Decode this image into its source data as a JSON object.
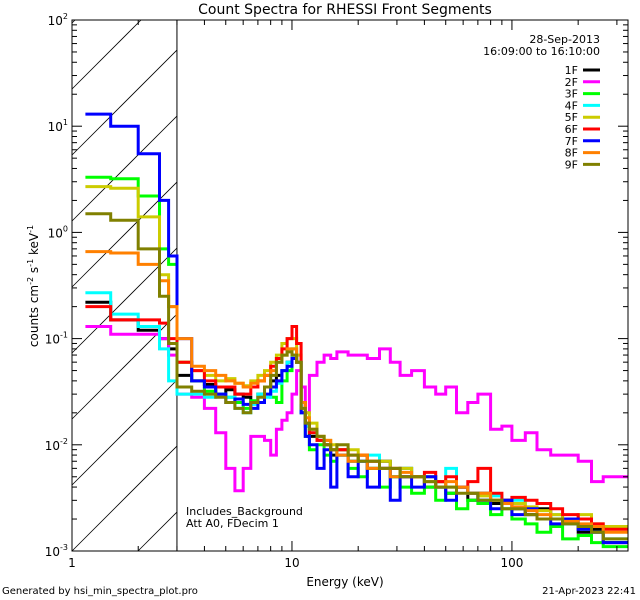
{
  "chart_data": {
    "type": "line",
    "title": "Count Spectra for RHESSI Front Segments",
    "xlabel": "Energy (keV)",
    "ylabel": {
      "base": "counts cm",
      "exp1": "-2",
      "mid": " s",
      "exp2": "-1",
      "mid2": " keV",
      "exp3": "-1"
    },
    "xscale": "log",
    "yscale": "log",
    "xlim": [
      1,
      337
    ],
    "ylim": [
      0.001,
      100
    ],
    "x_ticks": [
      {
        "v": 1,
        "label": "1"
      },
      {
        "v": 10,
        "label": "10"
      },
      {
        "v": 100,
        "label": "100"
      }
    ],
    "y_ticks": [
      {
        "v": 0.001,
        "base": "10",
        "exp": "-3"
      },
      {
        "v": 0.01,
        "base": "10",
        "exp": "-2"
      },
      {
        "v": 0.1,
        "base": "10",
        "exp": "-1"
      },
      {
        "v": 1,
        "base": "10",
        "exp": "0"
      },
      {
        "v": 10,
        "base": "10",
        "exp": "1"
      },
      {
        "v": 100,
        "base": "10",
        "exp": "2"
      }
    ],
    "excluded_region_keV": [
      1,
      3
    ],
    "legend_placement": "top-right",
    "legend_header": [
      "28-Sep-2013",
      "16:09:00 to 16:10:00"
    ],
    "annotations": [
      "Includes_Background",
      "Att A0, FDecim 1"
    ],
    "energy_edges": [
      1.15,
      1.5,
      2,
      2.5,
      2.75,
      3,
      3.5,
      4,
      4.5,
      5,
      5.5,
      6,
      6.5,
      7,
      7.5,
      8,
      8.5,
      9,
      9.5,
      10,
      10.5,
      11,
      11.5,
      12,
      13,
      14,
      15,
      16,
      18,
      20,
      22,
      25,
      28,
      31,
      35,
      40,
      45,
      50,
      56,
      63,
      70,
      80,
      90,
      100,
      115,
      130,
      150,
      170,
      200,
      230,
      260,
      337
    ],
    "series": [
      {
        "name": "1F",
        "color": "#000000",
        "values": [
          0.22,
          0.15,
          0.12,
          0.1,
          0.08,
          0.045,
          0.04,
          0.037,
          0.03,
          0.033,
          0.03,
          0.028,
          0.025,
          0.03,
          0.035,
          0.04,
          0.045,
          0.05,
          0.06,
          0.07,
          0.06,
          0.02,
          0.015,
          0.012,
          0.011,
          0.01,
          0.008,
          0.009,
          0.007,
          0.008,
          0.006,
          0.007,
          0.005,
          0.006,
          0.005,
          0.004,
          0.0045,
          0.0035,
          0.004,
          0.003,
          0.0035,
          0.0028,
          0.003,
          0.0025,
          0.0022,
          0.0025,
          0.002,
          0.0018,
          0.0015,
          0.0016,
          0.0012
        ]
      },
      {
        "name": "2F",
        "color": "#ff00ff",
        "values": [
          0.13,
          0.11,
          0.11,
          0.1,
          0.07,
          0.03,
          0.028,
          0.022,
          0.013,
          0.006,
          0.0037,
          0.006,
          0.012,
          0.012,
          0.011,
          0.008,
          0.014,
          0.017,
          0.02,
          0.03,
          0.05,
          0.035,
          0.02,
          0.045,
          0.06,
          0.07,
          0.065,
          0.075,
          0.07,
          0.07,
          0.065,
          0.08,
          0.06,
          0.045,
          0.05,
          0.035,
          0.03,
          0.035,
          0.02,
          0.025,
          0.03,
          0.014,
          0.015,
          0.011,
          0.013,
          0.009,
          0.008,
          0.008,
          0.007,
          0.0045,
          0.005
        ]
      },
      {
        "name": "3F",
        "color": "#00ff00",
        "values": [
          3.3,
          3.2,
          2.2,
          0.7,
          0.5,
          0.06,
          0.04,
          0.032,
          0.03,
          0.028,
          0.025,
          0.022,
          0.026,
          0.03,
          0.035,
          0.028,
          0.025,
          0.04,
          0.05,
          0.08,
          0.06,
          0.02,
          0.012,
          0.009,
          0.01,
          0.008,
          0.007,
          0.008,
          0.006,
          0.005,
          0.006,
          0.004,
          0.005,
          0.004,
          0.0035,
          0.004,
          0.003,
          0.0035,
          0.0025,
          0.003,
          0.0028,
          0.0022,
          0.0025,
          0.002,
          0.0018,
          0.0015,
          0.0017,
          0.0013,
          0.0014,
          0.0012,
          0.0011
        ]
      },
      {
        "name": "4F",
        "color": "#00ffff",
        "values": [
          0.27,
          0.17,
          0.13,
          0.08,
          0.04,
          0.03,
          0.03,
          0.028,
          0.03,
          0.028,
          0.022,
          0.02,
          0.024,
          0.03,
          0.028,
          0.032,
          0.038,
          0.05,
          0.06,
          0.07,
          0.06,
          0.02,
          0.015,
          0.013,
          0.011,
          0.01,
          0.009,
          0.008,
          0.007,
          0.007,
          0.008,
          0.006,
          0.005,
          0.006,
          0.005,
          0.005,
          0.004,
          0.006,
          0.004,
          0.0035,
          0.003,
          0.0033,
          0.0028,
          0.003,
          0.0025,
          0.002,
          0.0022,
          0.0018,
          0.0017,
          0.0015,
          0.0013
        ]
      },
      {
        "name": "5F",
        "color": "#cccc00",
        "values": [
          2.7,
          2.6,
          1.4,
          0.4,
          0.2,
          0.06,
          0.05,
          0.045,
          0.04,
          0.042,
          0.038,
          0.036,
          0.04,
          0.045,
          0.05,
          0.06,
          0.07,
          0.09,
          0.1,
          0.1,
          0.07,
          0.025,
          0.02,
          0.016,
          0.012,
          0.011,
          0.01,
          0.009,
          0.009,
          0.008,
          0.007,
          0.007,
          0.006,
          0.006,
          0.005,
          0.005,
          0.0045,
          0.004,
          0.004,
          0.0035,
          0.0033,
          0.003,
          0.003,
          0.0028,
          0.0026,
          0.0024,
          0.0022,
          0.002,
          0.0022,
          0.0018,
          0.0017
        ]
      },
      {
        "name": "6F",
        "color": "#ff0000",
        "values": [
          0.2,
          0.15,
          0.15,
          0.14,
          0.1,
          0.06,
          0.05,
          0.04,
          0.035,
          0.035,
          0.03,
          0.03,
          0.035,
          0.04,
          0.045,
          0.055,
          0.065,
          0.08,
          0.1,
          0.13,
          0.09,
          0.025,
          0.016,
          0.013,
          0.011,
          0.01,
          0.009,
          0.009,
          0.008,
          0.008,
          0.007,
          0.006,
          0.006,
          0.005,
          0.005,
          0.0055,
          0.0045,
          0.005,
          0.004,
          0.0045,
          0.006,
          0.0035,
          0.003,
          0.0032,
          0.003,
          0.0028,
          0.0025,
          0.0022,
          0.002,
          0.0018,
          0.0016
        ]
      },
      {
        "name": "7F",
        "color": "#0000ff",
        "values": [
          13,
          10,
          5.5,
          2,
          0.6,
          0.1,
          0.04,
          0.035,
          0.03,
          0.025,
          0.027,
          0.024,
          0.022,
          0.025,
          0.03,
          0.035,
          0.04,
          0.05,
          0.055,
          0.065,
          0.06,
          0.02,
          0.012,
          0.01,
          0.006,
          0.009,
          0.004,
          0.008,
          0.005,
          0.007,
          0.004,
          0.006,
          0.003,
          0.005,
          0.004,
          0.005,
          0.004,
          0.003,
          0.004,
          0.0035,
          0.003,
          0.0025,
          0.003,
          0.0022,
          0.0025,
          0.002,
          0.0018,
          0.002,
          0.0016,
          0.0015,
          0.0012
        ]
      },
      {
        "name": "8F",
        "color": "#ff8000",
        "values": [
          0.66,
          0.64,
          0.5,
          0.35,
          0.2,
          0.1,
          0.055,
          0.05,
          0.045,
          0.04,
          0.038,
          0.035,
          0.038,
          0.04,
          0.045,
          0.05,
          0.06,
          0.07,
          0.08,
          0.08,
          0.06,
          0.025,
          0.018,
          0.014,
          0.012,
          0.011,
          0.009,
          0.008,
          0.007,
          0.008,
          0.006,
          0.006,
          0.005,
          0.0055,
          0.005,
          0.0045,
          0.004,
          0.0045,
          0.004,
          0.0035,
          0.0035,
          0.003,
          0.0028,
          0.0026,
          0.0024,
          0.0022,
          0.002,
          0.0019,
          0.0018,
          0.0017,
          0.0015
        ]
      },
      {
        "name": "9F",
        "color": "#808000",
        "values": [
          1.5,
          1.3,
          0.7,
          0.25,
          0.09,
          0.035,
          0.032,
          0.03,
          0.028,
          0.025,
          0.022,
          0.02,
          0.025,
          0.028,
          0.035,
          0.045,
          0.06,
          0.07,
          0.075,
          0.07,
          0.06,
          0.022,
          0.016,
          0.014,
          0.012,
          0.01,
          0.009,
          0.01,
          0.008,
          0.007,
          0.007,
          0.006,
          0.006,
          0.005,
          0.005,
          0.0045,
          0.004,
          0.004,
          0.0035,
          0.0035,
          0.003,
          0.003,
          0.0025,
          0.0025,
          0.0022,
          0.002,
          0.002,
          0.0018,
          0.0017,
          0.0015,
          0.0013
        ]
      }
    ]
  },
  "footer": {
    "left": "Generated by hsi_min_spectra_plot.pro",
    "right": "21-Apr-2023 22:41"
  }
}
